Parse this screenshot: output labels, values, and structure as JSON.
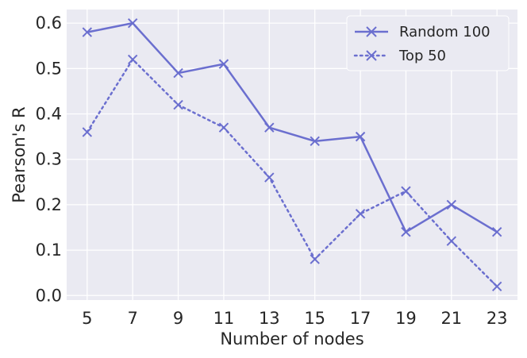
{
  "chart_data": {
    "type": "line",
    "title": "",
    "xlabel": "Number of nodes",
    "ylabel": "Pearson's R",
    "x": [
      5,
      7,
      9,
      11,
      13,
      15,
      17,
      19,
      21,
      23
    ],
    "x_ticks": [
      "5",
      "7",
      "9",
      "11",
      "13",
      "15",
      "17",
      "19",
      "21",
      "23"
    ],
    "y_ticks": [
      "0.0",
      "0.1",
      "0.2",
      "0.3",
      "0.4",
      "0.5",
      "0.6"
    ],
    "xlim": [
      4.1,
      23.9
    ],
    "ylim": [
      -0.01,
      0.63
    ],
    "grid": true,
    "legend_position": "top-right",
    "colors": {
      "series": "#6b6fcf",
      "plot_bg": "#eaeaf2",
      "grid": "#ffffff"
    },
    "series": [
      {
        "name": "Random 100",
        "style": "solid",
        "marker": "x",
        "values": [
          0.58,
          0.6,
          0.49,
          0.51,
          0.37,
          0.34,
          0.35,
          0.14,
          0.2,
          0.14
        ]
      },
      {
        "name": "Top 50",
        "style": "dotted",
        "marker": "x",
        "values": [
          0.36,
          0.52,
          0.42,
          0.37,
          0.26,
          0.08,
          0.18,
          0.23,
          0.12,
          0.02
        ]
      }
    ]
  }
}
